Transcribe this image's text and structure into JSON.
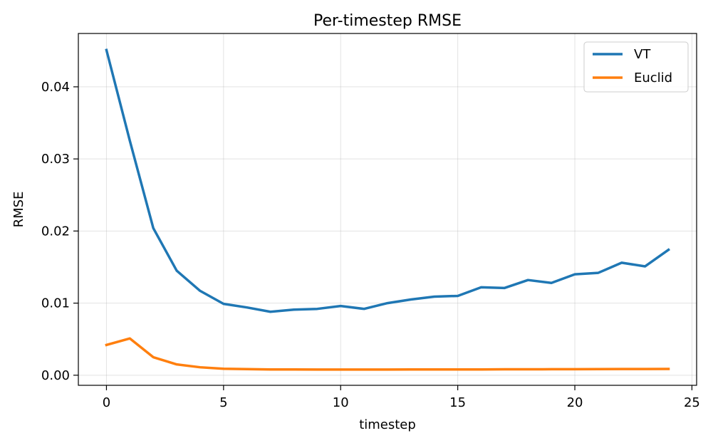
{
  "chart_data": {
    "type": "line",
    "title": "Per-timestep RMSE",
    "xlabel": "timestep",
    "ylabel": "RMSE",
    "xlim": [
      -1.2,
      25.2
    ],
    "ylim": [
      -0.0014,
      0.0474
    ],
    "xticks": [
      0,
      5,
      10,
      15,
      20,
      25
    ],
    "xtick_labels": [
      "0",
      "5",
      "10",
      "15",
      "20",
      "25"
    ],
    "yticks": [
      0.0,
      0.01,
      0.02,
      0.03,
      0.04
    ],
    "ytick_labels": [
      "0.00",
      "0.01",
      "0.02",
      "0.03",
      "0.04"
    ],
    "grid": true,
    "legend_position": "top-right",
    "x": [
      0,
      1,
      2,
      3,
      4,
      5,
      6,
      7,
      8,
      9,
      10,
      11,
      12,
      13,
      14,
      15,
      16,
      17,
      18,
      19,
      20,
      21,
      22,
      23,
      24
    ],
    "series": [
      {
        "name": "VT",
        "color": "#1f77b4",
        "values": [
          0.0451,
          0.0325,
          0.0204,
          0.0145,
          0.0117,
          0.0099,
          0.0094,
          0.0088,
          0.0091,
          0.0092,
          0.0096,
          0.0092,
          0.01,
          0.0105,
          0.0109,
          0.011,
          0.0122,
          0.0121,
          0.0132,
          0.0128,
          0.014,
          0.0142,
          0.0156,
          0.0151,
          0.0174
        ]
      },
      {
        "name": "Euclid",
        "color": "#ff7f0e",
        "values": [
          0.0042,
          0.0051,
          0.0025,
          0.0015,
          0.0011,
          0.0009,
          0.00085,
          0.0008,
          0.0008,
          0.00078,
          0.00078,
          0.00078,
          0.00079,
          0.0008,
          0.0008,
          0.0008,
          0.0008,
          0.00082,
          0.00082,
          0.00083,
          0.00083,
          0.00085,
          0.00086,
          0.00086,
          0.00087
        ]
      }
    ]
  }
}
